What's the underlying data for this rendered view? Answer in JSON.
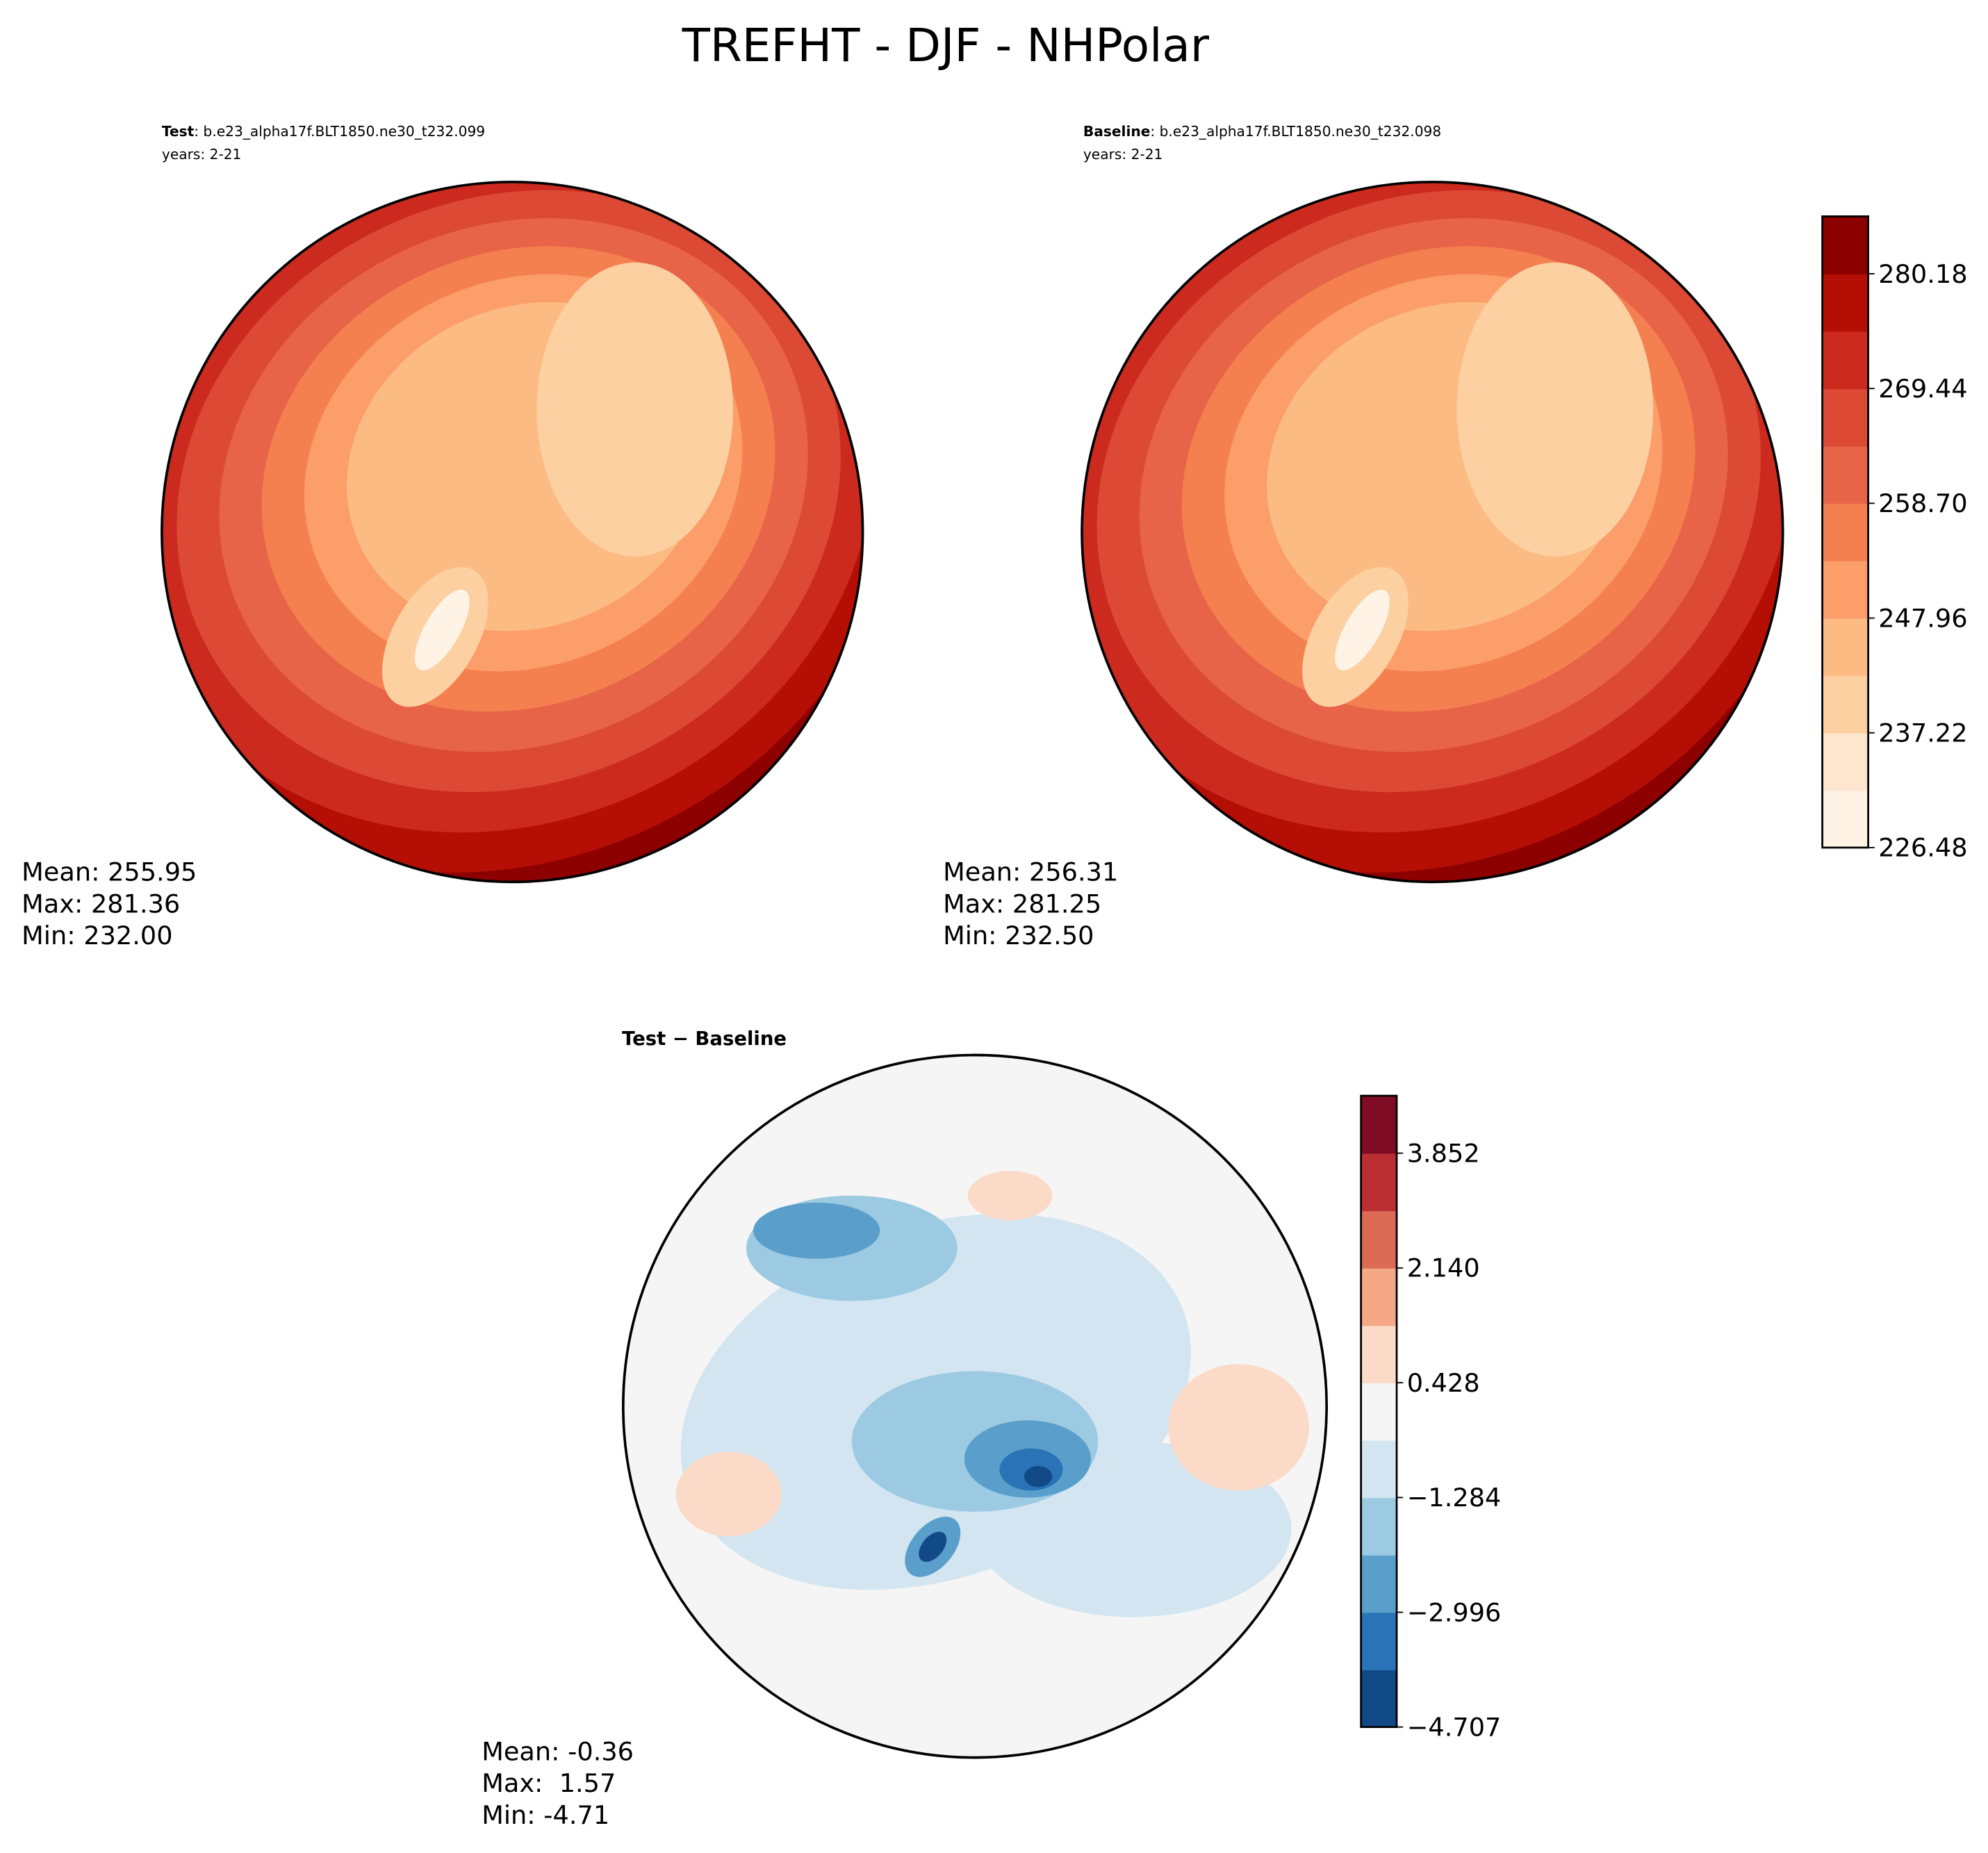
{
  "title": "TREFHT - DJF - NHPolar",
  "panels": [
    {
      "label": "Test",
      "case": ": b.e23_alpha17f.BLT1850.ne30_t232.099",
      "years": "years: 2-21",
      "stats": [
        "Mean: 255.95",
        "Max: 281.36",
        "Min: 232.00"
      ]
    },
    {
      "label": "Baseline",
      "case": ": b.e23_alpha17f.BLT1850.ne30_t232.098",
      "years": "years: 2-21",
      "stats": [
        "Mean: 256.31",
        "Max: 281.25",
        "Min: 232.50"
      ]
    },
    {
      "label": "Test − Baseline",
      "stats": [
        "Mean: -0.36",
        "Max:  1.57",
        "Min: -4.71"
      ]
    }
  ],
  "colorbars": [
    {
      "lim": [
        226.48,
        285.55
      ],
      "ticks": [
        226.48,
        237.22,
        247.96,
        {
          "value": 258.7,
          "label": "258.70"
        },
        269.44,
        280.18
      ],
      "colors": [
        "#fff3e6",
        "#fee6ce",
        "#fdd0a2",
        "#fdbb84",
        "#fc9e6a",
        "#f4804f",
        "#e86448",
        "#dc4a36",
        "#cc2a1e",
        "#b50e05",
        "#8c0000"
      ]
    },
    {
      "lim": [
        -4.707,
        4.708
      ],
      "ticks": [
        {
          "value": -4.707,
          "label": "−4.707"
        },
        {
          "value": -2.996,
          "label": "−2.996"
        },
        {
          "value": -1.284,
          "label": "−1.284"
        },
        0.428,
        {
          "value": 2.14,
          "label": "2.140"
        },
        3.852
      ],
      "colors": [
        "#124a87",
        "#2a73b6",
        "#5a9fcb",
        "#9ccae2",
        "#d2e5f0",
        "#f5f5f5",
        "#fbdac8",
        "#f4a886",
        "#db6b54",
        "#bb2f33",
        "#7f0c24"
      ]
    }
  ]
}
